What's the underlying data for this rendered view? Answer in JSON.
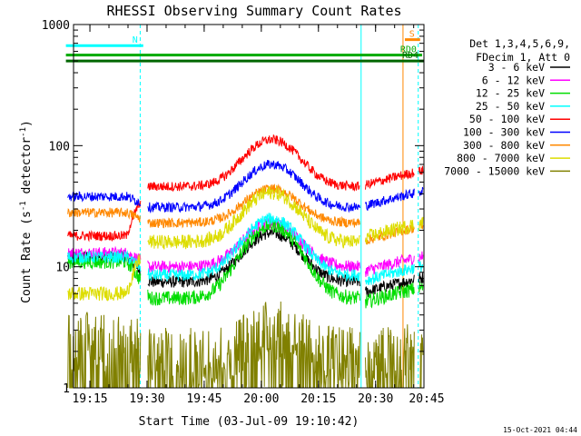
{
  "chart_data": {
    "type": "line",
    "title": "RHESSI Observing Summary Count Rates",
    "xlabel": "Start Time (03-Jul-09 19:10:42)",
    "ylabel_main": "Count Rate (s",
    "ylabel_sup": "-1",
    "ylabel_tail": " detector",
    "ylabel_tail_sup": "-1",
    "ylabel_close": ")",
    "yscale": "log",
    "ylim": [
      1,
      1000
    ],
    "xlim_minutes": [
      0,
      92
    ],
    "y_ticks": [
      {
        "value": 1,
        "label": "1"
      },
      {
        "value": 10,
        "label": "10"
      },
      {
        "value": 100,
        "label": "100"
      },
      {
        "value": 1000,
        "label": "1000"
      }
    ],
    "x_ticks": [
      {
        "minute": 4.3,
        "label": "19:15"
      },
      {
        "minute": 19.3,
        "label": "19:30"
      },
      {
        "minute": 34.3,
        "label": "19:45"
      },
      {
        "minute": 49.3,
        "label": "20:00"
      },
      {
        "minute": 64.3,
        "label": "20:15"
      },
      {
        "minute": 79.3,
        "label": "20:30"
      },
      {
        "minute": 94.3,
        "label": "20:45"
      }
    ],
    "legend_header": [
      "Det 1,3,4,5,6,9,",
      "FDecim 1, Att 0"
    ],
    "series": [
      {
        "name": "3 - 6 keV",
        "color": "#000000",
        "base": 7.5,
        "pre": 12,
        "peak": 19,
        "post": 6,
        "jitter": 0.05,
        "floor_dashes": true
      },
      {
        "name": "6 - 12 keV",
        "color": "#ff00ff",
        "base": 10,
        "pre": 13,
        "peak": 23,
        "post": 9,
        "jitter": 0.05
      },
      {
        "name": "12 - 25 keV",
        "color": "#00dd00",
        "base": 5.5,
        "pre": 11,
        "peak": 22,
        "post": 5,
        "jitter": 0.06
      },
      {
        "name": "25 - 50 keV",
        "color": "#00ffff",
        "base": 8.5,
        "pre": 12,
        "peak": 25,
        "post": 7.5,
        "jitter": 0.05
      },
      {
        "name": "50 - 100 keV",
        "color": "#ff0000",
        "base": 46,
        "pre": 18,
        "peak": 112,
        "post": 46,
        "jitter": 0.04
      },
      {
        "name": "100 - 300 keV",
        "color": "#0000ff",
        "base": 31,
        "pre": 38,
        "peak": 70,
        "post": 31,
        "jitter": 0.04
      },
      {
        "name": "300 - 800 keV",
        "color": "#ff8800",
        "base": 23,
        "pre": 28,
        "peak": 44,
        "post": 16,
        "jitter": 0.04
      },
      {
        "name": "800 - 7000 keV",
        "color": "#dddd00",
        "base": 16,
        "pre": 6,
        "peak": 41,
        "post": 17,
        "jitter": 0.06
      },
      {
        "name": "7000 - 15000 keV",
        "color": "#808000",
        "base": 1.8,
        "pre": 2.4,
        "peak": 3.0,
        "post": 1.6,
        "jitter": 0.25
      }
    ],
    "flags": [
      {
        "label": "N",
        "color": "#00ffff",
        "value": 670,
        "start": -2,
        "end": 18.3
      },
      {
        "label": "RD0",
        "color": "#00aa00",
        "value": 560,
        "start": -2,
        "end": 91.5
      },
      {
        "label": "RD4",
        "color": "#006600",
        "value": 500,
        "start": -2,
        "end": 92
      },
      {
        "label": "S",
        "color": "#ff8800",
        "value": 750,
        "start": 87,
        "end": 91
      }
    ],
    "vertical_markers": [
      {
        "minute": 17.5,
        "color": "#00ffff",
        "style": "dashed"
      },
      {
        "minute": 75.5,
        "color": "#00ffff",
        "style": "solid"
      },
      {
        "minute": 86.5,
        "color": "#ff8800",
        "style": "solid"
      },
      {
        "minute": 90.5,
        "color": "#00ffff",
        "style": "dashed"
      }
    ],
    "timestamp": "15-Oct-2021 04:44"
  }
}
